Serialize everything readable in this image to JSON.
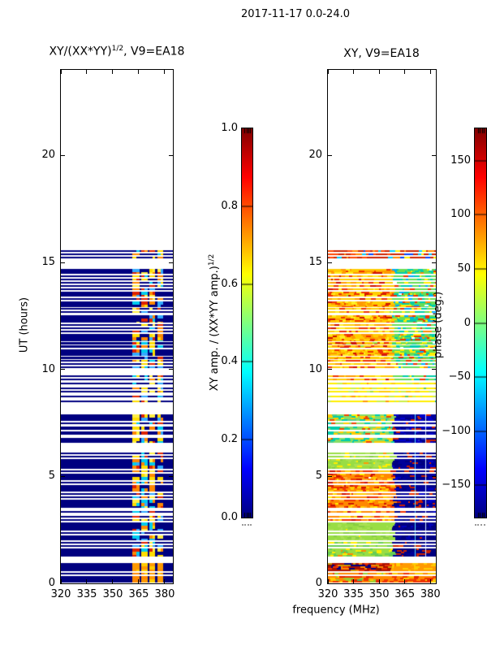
{
  "suptitle": "2017-11-17 0.0-24.0",
  "colors": {
    "background": "#ffffff",
    "axis": "#000000",
    "navy": "#000080"
  },
  "jet_stops": [
    [
      0.0,
      "#000080"
    ],
    [
      0.125,
      "#0000ff"
    ],
    [
      0.375,
      "#00ffff"
    ],
    [
      0.625,
      "#ffff00"
    ],
    [
      0.875,
      "#ff0000"
    ],
    [
      1.0,
      "#800000"
    ]
  ],
  "chart_data": [
    {
      "type": "heatmap",
      "title": "XY/(XX*YY)^(1/2), V9=EA18",
      "title_parts": {
        "pre": "XY/(XX*YY)",
        "sup": "1/2",
        "post": ", V9=EA18"
      },
      "xlabel": "",
      "ylabel": "UT (hours)",
      "xlim": [
        320,
        384.7
      ],
      "ylim": [
        0,
        24
      ],
      "xticks": [
        320,
        335,
        350,
        365,
        380
      ],
      "yticks": [
        0,
        5,
        10,
        15,
        20
      ],
      "colorbar": {
        "label": "XY amp. / (XX*YY amp.)^(1/2)",
        "label_parts": {
          "pre": "XY amp. / (XX*YY amp.)",
          "sup": "1/2"
        },
        "range": [
          0,
          1
        ],
        "ticks": [
          1.0,
          0.8,
          0.6,
          0.4,
          0.2,
          0.0
        ],
        "tick_labels": [
          "1.0",
          "0.8",
          "0.6",
          "0.4",
          "0.2",
          "0.0"
        ],
        "colormap": "jet"
      },
      "value_semantics": "Normalized XY amplitude: observed time rows are ~0 (navy) at 320-361 MHz with an RFI band at 361-379 MHz reaching 0.2-0.9; white = no data."
    },
    {
      "type": "heatmap",
      "title": "XY, V9=EA18",
      "title_parts": {
        "pre": "XY, V9=EA18",
        "sup": "",
        "post": ""
      },
      "xlabel": "frequency (MHz)",
      "ylabel": "",
      "xlim": [
        320,
        383.2
      ],
      "ylim": [
        0,
        24
      ],
      "xticks": [
        320,
        335,
        350,
        365,
        380
      ],
      "yticks": [
        0,
        5,
        10,
        15,
        20
      ],
      "colorbar": {
        "label": "phase (deg.)",
        "label_parts": {
          "pre": "phase (deg.)",
          "sup": ""
        },
        "range": [
          -180,
          180
        ],
        "ticks": [
          150,
          100,
          50,
          0,
          -50,
          -100,
          -150
        ],
        "tick_labels": [
          "150",
          "100",
          "50",
          "0",
          "−50",
          "−100",
          "−150"
        ],
        "colormap": "jet"
      },
      "value_semantics": "XY phase in degrees over the same time rows: mostly yellow/orange/red speckle below ~15.6 h, navy (~-180 deg) block at 358-383 MHz for ~1.2-8 h, strong orange/red near 0-1 h; white = no data."
    }
  ],
  "rows_hours": [
    [
      0.04,
      0.34
    ],
    [
      0.42,
      0.5
    ],
    [
      0.57,
      0.95
    ],
    [
      1.25,
      1.63
    ],
    [
      1.71,
      1.79
    ],
    [
      1.86,
      1.94
    ],
    [
      2.01,
      2.24
    ],
    [
      2.32,
      2.4
    ],
    [
      2.47,
      2.85
    ],
    [
      2.93,
      3.01
    ],
    [
      3.08,
      3.16
    ],
    [
      3.3,
      3.38
    ],
    [
      3.53,
      3.91
    ],
    [
      3.99,
      4.07
    ],
    [
      4.14,
      4.22
    ],
    [
      4.29,
      4.6
    ],
    [
      4.67,
      4.75
    ],
    [
      4.82,
      5.13
    ],
    [
      5.2,
      5.28
    ],
    [
      5.35,
      5.81
    ],
    [
      5.89,
      5.97
    ],
    [
      6.04,
      6.12
    ],
    [
      6.57,
      6.8
    ],
    [
      6.95,
      7.1
    ],
    [
      7.18,
      7.33
    ],
    [
      7.45,
      7.53
    ],
    [
      7.6,
      7.9
    ],
    [
      8.47,
      8.55
    ],
    [
      8.7,
      8.78
    ],
    [
      8.93,
      9.01
    ],
    [
      9.08,
      9.16
    ],
    [
      9.3,
      9.38
    ],
    [
      9.5,
      9.58
    ],
    [
      9.65,
      9.73
    ],
    [
      10.05,
      10.13
    ],
    [
      10.2,
      10.28
    ],
    [
      10.35,
      10.43
    ],
    [
      10.5,
      10.58
    ],
    [
      10.65,
      10.95
    ],
    [
      11.03,
      11.11
    ],
    [
      11.18,
      11.26
    ],
    [
      11.33,
      11.64
    ],
    [
      11.72,
      11.8
    ],
    [
      11.87,
      11.95
    ],
    [
      12.02,
      12.1
    ],
    [
      12.18,
      12.55
    ],
    [
      12.63,
      12.71
    ],
    [
      12.78,
      12.86
    ],
    [
      12.93,
      13.17
    ],
    [
      13.25,
      13.33
    ],
    [
      13.4,
      13.63
    ],
    [
      13.7,
      13.79
    ],
    [
      13.87,
      13.95
    ],
    [
      14.02,
      14.1
    ],
    [
      14.17,
      14.25
    ],
    [
      14.32,
      14.4
    ],
    [
      14.48,
      14.7
    ],
    [
      15.2,
      15.28
    ],
    [
      15.35,
      15.43
    ],
    [
      15.5,
      15.58
    ]
  ],
  "left_band": {
    "f_range": [
      361.3,
      379.3
    ],
    "blocks": [
      [
        361.3,
        365.3
      ],
      [
        366.3,
        370.1
      ],
      [
        371.1,
        374.6
      ],
      [
        375.6,
        379.3
      ]
    ],
    "palette": [
      "#00ccee",
      "#ffdd00",
      "#ff8800",
      "#dd2200",
      "#33aaff",
      "#ffee44",
      "#000080"
    ],
    "bright_low_hours_palette": [
      "#ff9900",
      "#ffcc00",
      "#ff8800"
    ]
  },
  "right_zones": [
    {
      "h": [
        15.0,
        24.0
      ],
      "f_split": 357.5,
      "left": [
        "#cc2200",
        "#ff4400",
        "#ff8800",
        "#00ccff",
        "#0044ff",
        "#ffee00"
      ],
      "right": [
        "#cc2200",
        "#00ccff",
        "#ff8800",
        "#0044ff",
        "#ffee00",
        "#66dd55"
      ]
    },
    {
      "h": [
        9.45,
        15.0
      ],
      "f_split": 357.5,
      "left": [
        "#ffcc00",
        "#ff9900",
        "#ee3300",
        "#ffee22",
        "#cc1100",
        "#ffaa00",
        "#99dd44"
      ],
      "right": [
        "#66dd55",
        "#00ccaa",
        "#ffee00",
        "#ee3300",
        "#00aaff",
        "#ff8800",
        "#ffffff"
      ]
    },
    {
      "h": [
        8.3,
        9.45
      ],
      "f_split": 357.5,
      "left": [
        "#ffee00",
        "#ccee44",
        "#ffcc00",
        "#ff9900",
        "#aadd33"
      ],
      "right": [
        "#ffee00",
        "#ccee44",
        "#ffcc00",
        "#66cc44",
        "#00bbaa"
      ]
    },
    {
      "h": [
        6.45,
        8.3
      ],
      "f_split": 357.5,
      "left": [
        "#88dd66",
        "#00ccaa",
        "#ffcc00",
        "#ee4400",
        "#55cc88",
        "#ffee00"
      ],
      "right": [
        "#000099",
        "#0000cc",
        "#cc2200",
        "#000080",
        "#2233bb"
      ]
    },
    {
      "h": [
        5.3,
        6.45
      ],
      "f_split": 357.5,
      "left": [
        "#99dd44",
        "#aae055",
        "#ffee00",
        "#88cc44",
        "#ff9900"
      ],
      "right": [
        "#000099",
        "#000080",
        "#cc2200",
        "#0000cc",
        "#001a99"
      ]
    },
    {
      "h": [
        2.95,
        5.3
      ],
      "f_split": 357.5,
      "left": [
        "#ff8800",
        "#ee3300",
        "#ffcc00",
        "#cc1100",
        "#ffaa22",
        "#ffee00",
        "#ffffff"
      ],
      "right": [
        "#000099",
        "#000080",
        "#cc2200",
        "#0000cc",
        "#ee3300"
      ]
    },
    {
      "h": [
        1.95,
        2.95
      ],
      "f_split": 357.5,
      "left": [
        "#99dd44",
        "#aae055",
        "#88cc44",
        "#ffee00"
      ],
      "right": [
        "#000080",
        "#000099",
        "#0000bb",
        "#cc2200"
      ]
    },
    {
      "h": [
        1.15,
        1.95
      ],
      "f_split": 357.5,
      "left": [
        "#99dd44",
        "#66cc55",
        "#ffee00",
        "#ff8800"
      ],
      "right": [
        "#000080",
        "#cc2200",
        "#000099",
        "#ee4400"
      ]
    },
    {
      "h": [
        0.5,
        1.15
      ],
      "f_split": 356.0,
      "left": [
        "#aa1100",
        "#ee3300",
        "#000080",
        "#ff8800",
        "#cc9900",
        "#881100"
      ],
      "right": [
        "#ff9900",
        "#ffcc00",
        "#ffaa00",
        "#ff7700"
      ]
    },
    {
      "h": [
        0.0,
        0.5
      ],
      "f_split": 357.5,
      "left": [
        "#ff8800",
        "#ee3300",
        "#99cc33",
        "#ffcc00",
        "#dd2200",
        "#44bb66"
      ],
      "right": [
        "#ff8800",
        "#ee3300",
        "#ffcc00",
        "#dd2200",
        "#ff9900"
      ]
    }
  ],
  "right_overlays": [
    {
      "f": 371.0,
      "color": "#55ddff",
      "h": [
        1.15,
        8.3
      ]
    },
    {
      "f": 376.8,
      "color": "#cfe8ff",
      "h": [
        1.15,
        8.3
      ]
    }
  ]
}
